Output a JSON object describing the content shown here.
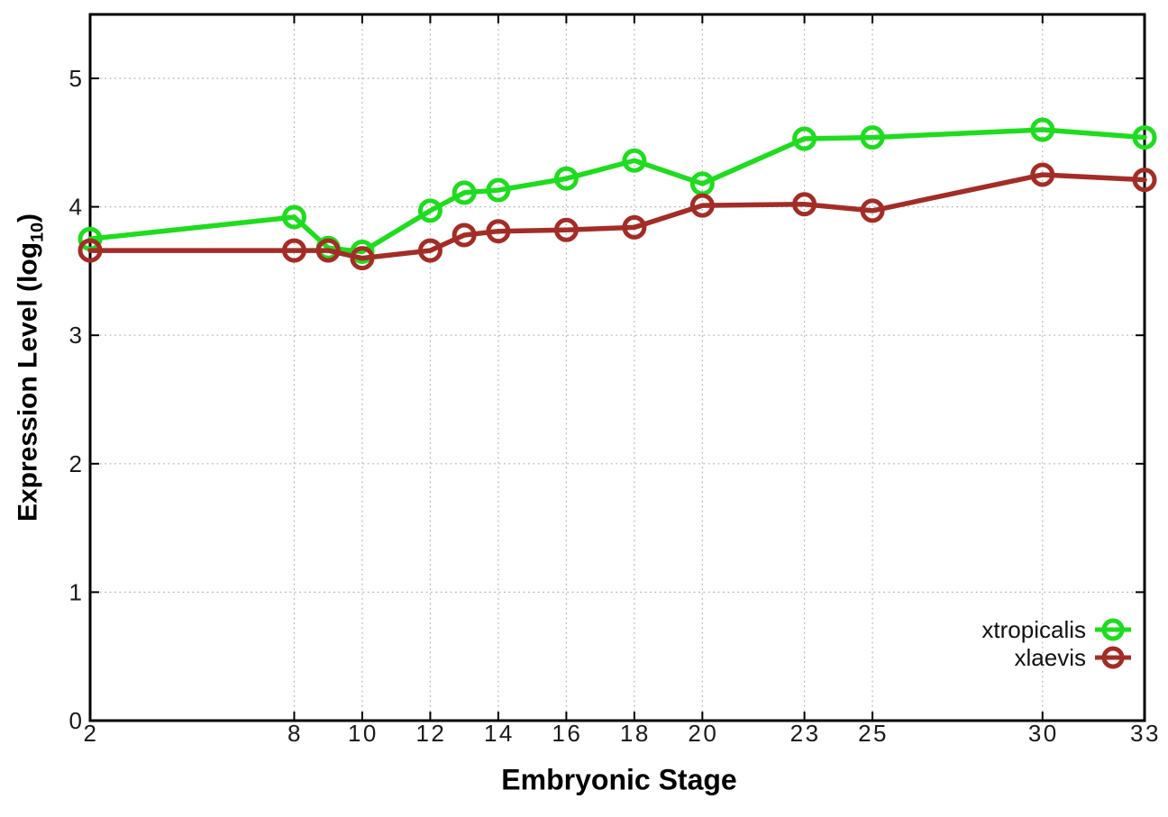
{
  "figure": {
    "background": "#ffffff",
    "border_color": "#000000",
    "grid_color": "#b4b4b4",
    "text_color": "#1a1a1a"
  },
  "chart_data": {
    "type": "line",
    "title": "",
    "xlabel": "Embryonic Stage",
    "ylabel": "Expression Level (log10)",
    "ylabel_parts": {
      "main": "Expression Level (log",
      "sub": "10",
      "end": ")"
    },
    "x": [
      2,
      8,
      9,
      10,
      12,
      13,
      14,
      16,
      18,
      20,
      23,
      25,
      30,
      33
    ],
    "series": [
      {
        "name": "xtropicalis",
        "color": "#1edc1e",
        "values": [
          3.75,
          3.92,
          3.68,
          3.65,
          3.97,
          4.11,
          4.13,
          4.22,
          4.36,
          4.18,
          4.53,
          4.54,
          4.6,
          4.54
        ]
      },
      {
        "name": "xlaevis",
        "color": "#a32d26",
        "values": [
          3.66,
          3.66,
          3.66,
          3.6,
          3.66,
          3.78,
          3.81,
          3.82,
          3.84,
          4.01,
          4.02,
          3.97,
          4.25,
          4.21
        ]
      }
    ],
    "x_ticks": [
      2,
      8,
      10,
      12,
      14,
      16,
      18,
      20,
      23,
      25,
      30,
      33
    ],
    "y_ticks": [
      0,
      1,
      2,
      3,
      4,
      5
    ],
    "xlim": [
      2,
      33
    ],
    "ylim": [
      0,
      5.5
    ],
    "grid": true,
    "marker": "open-circle",
    "legend_position": "inside-bottom-right"
  }
}
